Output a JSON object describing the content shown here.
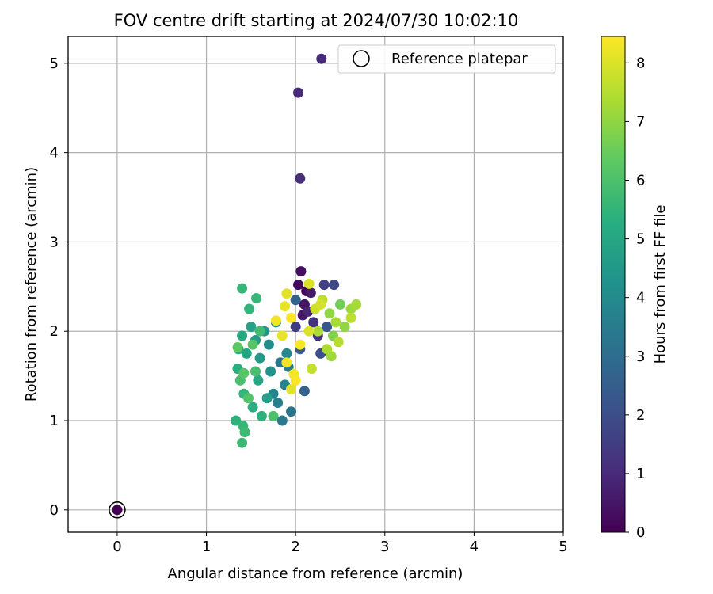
{
  "chart_data": {
    "type": "scatter",
    "title": "FOV centre drift starting at 2024/07/30 10:02:10",
    "xlabel": "Angular distance from reference (arcmin)",
    "ylabel": "Rotation from reference (arcmin)",
    "xlim": [
      -0.55,
      5
    ],
    "ylim": [
      -0.25,
      5.3
    ],
    "xticks": [
      "0",
      "1",
      "2",
      "3",
      "4",
      "5"
    ],
    "yticks": [
      "0",
      "1",
      "2",
      "3",
      "4",
      "5"
    ],
    "grid": true,
    "legend": {
      "placement": "top-right",
      "entries": [
        "Reference platepar"
      ]
    },
    "colorbar": {
      "label": "Hours from first FF file",
      "range": [
        0,
        8.45
      ],
      "ticks": [
        "0",
        "1",
        "2",
        "3",
        "4",
        "5",
        "6",
        "7",
        "8"
      ],
      "colormap": "viridis"
    },
    "reference_point": {
      "x": 0,
      "y": 0,
      "hours": 0
    },
    "series": [
      {
        "color_by": "hours",
        "points": [
          [
            2.29,
            5.05,
            1.0
          ],
          [
            2.03,
            4.67,
            1.0
          ],
          [
            2.05,
            3.71,
            1.1
          ],
          [
            2.06,
            2.67,
            0.3
          ],
          [
            2.03,
            2.52,
            0.2
          ],
          [
            2.12,
            2.45,
            0.2
          ],
          [
            2.1,
            2.3,
            0.4
          ],
          [
            2.17,
            2.43,
            0.6
          ],
          [
            2.32,
            2.52,
            1.6
          ],
          [
            2.43,
            2.52,
            1.8
          ],
          [
            2.08,
            2.18,
            0.5
          ],
          [
            2.14,
            2.22,
            0.9
          ],
          [
            2.2,
            2.1,
            1.2
          ],
          [
            2.25,
            1.95,
            1.3
          ],
          [
            2.0,
            2.05,
            1.5
          ],
          [
            2.28,
            1.75,
            2.0
          ],
          [
            2.35,
            2.05,
            2.2
          ],
          [
            2.05,
            1.8,
            2.4
          ],
          [
            2.1,
            1.33,
            2.6
          ],
          [
            2.0,
            2.35,
            2.7
          ],
          [
            1.95,
            1.1,
            3.2
          ],
          [
            1.85,
            1.0,
            3.4
          ],
          [
            1.92,
            1.6,
            3.5
          ],
          [
            1.8,
            1.2,
            3.6
          ],
          [
            1.88,
            1.4,
            3.7
          ],
          [
            1.75,
            1.3,
            3.8
          ],
          [
            1.9,
            1.75,
            3.9
          ],
          [
            1.83,
            1.65,
            3.3
          ],
          [
            1.7,
            1.85,
            4.1
          ],
          [
            1.78,
            2.1,
            4.2
          ],
          [
            1.72,
            1.55,
            4.3
          ],
          [
            1.65,
            2.0,
            4.4
          ],
          [
            1.6,
            1.7,
            4.5
          ],
          [
            1.55,
            1.9,
            4.6
          ],
          [
            1.68,
            1.25,
            4.7
          ],
          [
            1.5,
            2.05,
            4.8
          ],
          [
            1.45,
            1.75,
            4.9
          ],
          [
            1.58,
            1.45,
            5.0
          ],
          [
            1.4,
            1.95,
            5.1
          ],
          [
            1.36,
            1.8,
            5.2
          ],
          [
            1.52,
            1.15,
            5.3
          ],
          [
            1.35,
            1.58,
            5.3
          ],
          [
            1.62,
            1.05,
            5.4
          ],
          [
            1.33,
            1.0,
            5.4
          ],
          [
            1.42,
            1.3,
            5.5
          ],
          [
            1.48,
            2.25,
            5.5
          ],
          [
            1.56,
            2.37,
            5.6
          ],
          [
            1.4,
            2.48,
            5.6
          ],
          [
            1.41,
            0.94,
            5.6
          ],
          [
            1.4,
            0.75,
            5.7
          ],
          [
            1.43,
            0.87,
            5.7
          ],
          [
            1.6,
            2.0,
            5.8
          ],
          [
            1.38,
            1.45,
            5.9
          ],
          [
            1.55,
            1.55,
            5.9
          ],
          [
            1.75,
            1.05,
            6.0
          ],
          [
            1.47,
            1.25,
            6.1
          ],
          [
            1.42,
            1.53,
            6.2
          ],
          [
            1.52,
            1.85,
            6.2
          ],
          [
            1.35,
            1.82,
            6.3
          ],
          [
            2.5,
            2.3,
            6.6
          ],
          [
            2.42,
            1.95,
            6.8
          ],
          [
            2.38,
            2.2,
            7.0
          ],
          [
            2.55,
            2.05,
            7.0
          ],
          [
            2.62,
            2.25,
            7.2
          ],
          [
            2.68,
            2.3,
            7.3
          ],
          [
            2.45,
            2.1,
            7.3
          ],
          [
            2.35,
            1.8,
            7.4
          ],
          [
            2.25,
            2.0,
            7.4
          ],
          [
            2.4,
            1.72,
            7.2
          ],
          [
            2.48,
            1.88,
            7.5
          ],
          [
            2.62,
            2.15,
            7.6
          ],
          [
            2.3,
            2.35,
            7.6
          ],
          [
            2.18,
            1.58,
            7.7
          ],
          [
            2.22,
            2.25,
            7.8
          ],
          [
            2.28,
            2.3,
            7.9
          ],
          [
            2.15,
            2.0,
            8.0
          ],
          [
            2.15,
            2.53,
            8.0
          ],
          [
            1.9,
            2.42,
            8.1
          ],
          [
            1.95,
            1.35,
            8.1
          ],
          [
            1.88,
            2.28,
            8.2
          ],
          [
            1.85,
            1.95,
            8.2
          ],
          [
            1.98,
            1.52,
            8.3
          ],
          [
            1.9,
            1.65,
            8.3
          ],
          [
            1.78,
            2.12,
            8.3
          ],
          [
            2.05,
            1.85,
            8.4
          ],
          [
            1.95,
            2.15,
            8.4
          ],
          [
            2.0,
            1.45,
            8.4
          ]
        ]
      }
    ]
  }
}
